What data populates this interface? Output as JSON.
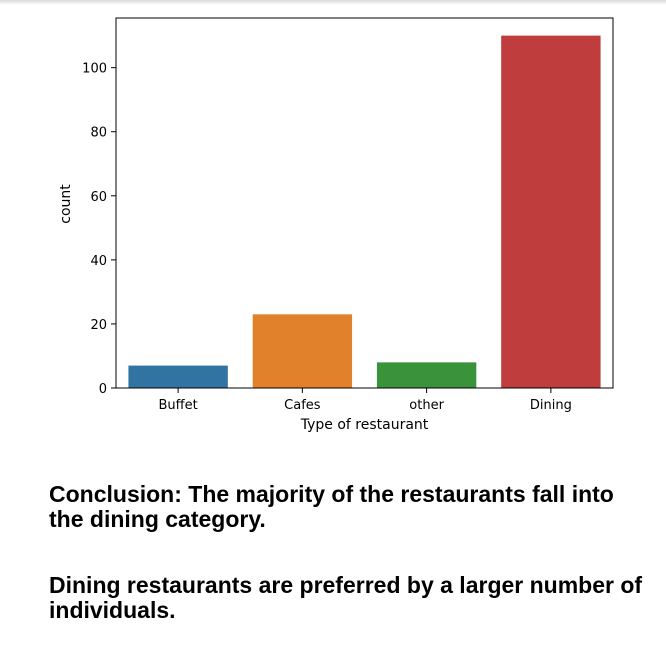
{
  "chart_data": {
    "type": "bar",
    "categories": [
      "Buffet",
      "Cafes",
      "other",
      "Dining"
    ],
    "values": [
      7,
      23,
      8,
      110
    ],
    "colors": [
      "#3274a1",
      "#e1812c",
      "#3a923a",
      "#c03d3e"
    ],
    "xlabel": "Type of restaurant",
    "ylabel": "count",
    "ylim": [
      0,
      115.5
    ],
    "yticks": [
      0,
      20,
      40,
      60,
      80,
      100
    ],
    "grid": false
  },
  "text": {
    "conclusion_1": "Conclusion: The majority of the restaurants fall into the dining category.",
    "conclusion_2": "Dining restaurants are preferred by a larger number of individuals."
  }
}
